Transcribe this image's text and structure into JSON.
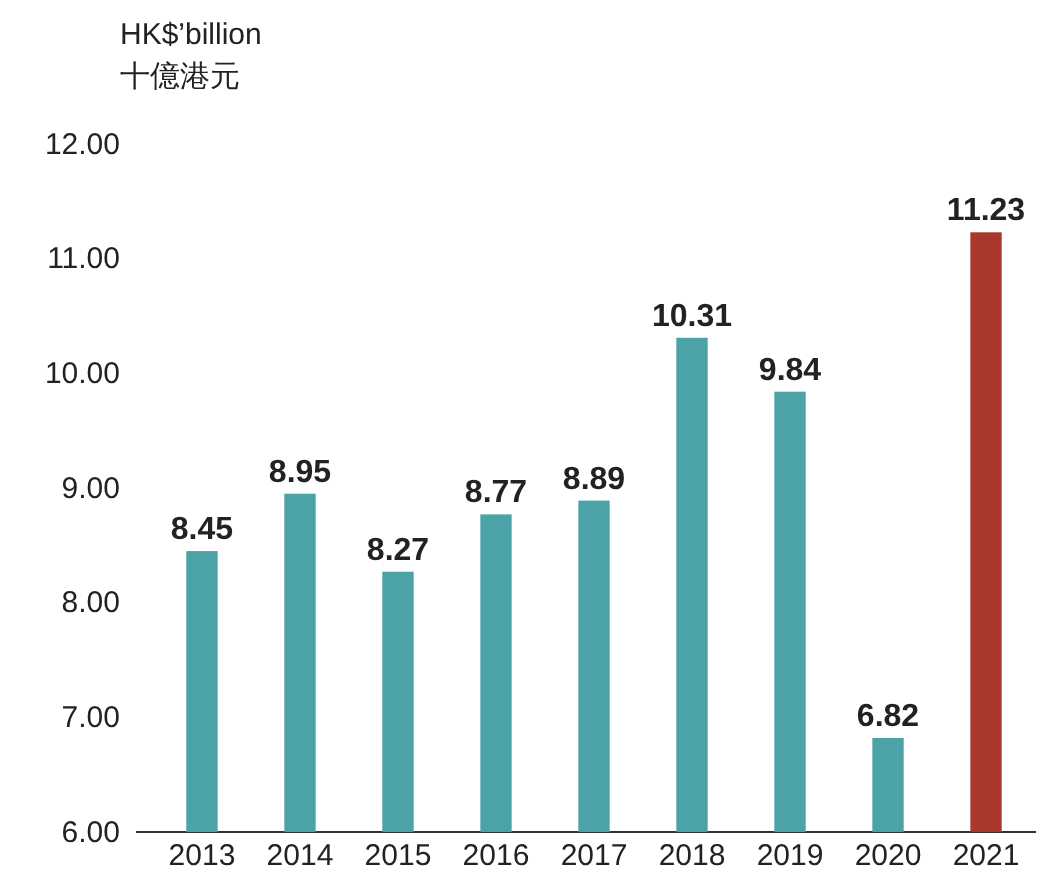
{
  "chart_data": {
    "type": "bar",
    "ylabel": "HK$’billion\n十億港元",
    "categories": [
      "2013",
      "2014",
      "2015",
      "2016",
      "2017",
      "2018",
      "2019",
      "2020",
      "2021"
    ],
    "values": [
      8.45,
      8.95,
      8.27,
      8.77,
      8.89,
      10.31,
      9.84,
      6.82,
      11.23
    ],
    "colors": [
      "#4ba3a8",
      "#4ba3a8",
      "#4ba3a8",
      "#4ba3a8",
      "#4ba3a8",
      "#4ba3a8",
      "#4ba3a8",
      "#4ba3a8",
      "#a8392c"
    ],
    "ylim": [
      6,
      12
    ],
    "yticks": [
      {
        "value": 6,
        "label": "6.00"
      },
      {
        "value": 7,
        "label": "7.00"
      },
      {
        "value": 8,
        "label": "8.00"
      },
      {
        "value": 9,
        "label": "9.00"
      },
      {
        "value": 10,
        "label": "10.00"
      },
      {
        "value": 11,
        "label": "11.00"
      },
      {
        "value": 12,
        "label": "12.00"
      }
    ],
    "grid": false,
    "data_labels": true
  }
}
